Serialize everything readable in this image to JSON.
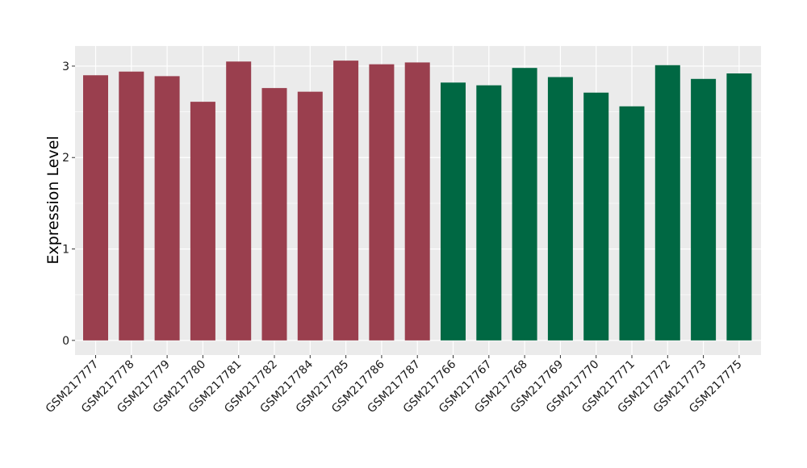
{
  "chart_data": {
    "type": "bar",
    "ylabel": "Expression Level",
    "xlabel": "",
    "ylim": [
      -0.16,
      3.22
    ],
    "yticks": [
      0,
      1,
      2,
      3
    ],
    "grid": true,
    "panel_background": "#EBEBEB",
    "grid_color": "#FFFFFF",
    "categories": [
      "GSM217777",
      "GSM217778",
      "GSM217779",
      "GSM217780",
      "GSM217781",
      "GSM217782",
      "GSM217784",
      "GSM217785",
      "GSM217786",
      "GSM217787",
      "GSM217766",
      "GSM217767",
      "GSM217768",
      "GSM217769",
      "GSM217770",
      "GSM217771",
      "GSM217772",
      "GSM217773",
      "GSM217775"
    ],
    "values": [
      2.9,
      2.94,
      2.89,
      2.61,
      3.05,
      2.76,
      2.72,
      3.06,
      3.02,
      3.04,
      2.82,
      2.79,
      2.98,
      2.88,
      2.71,
      2.56,
      3.01,
      2.86,
      2.92
    ],
    "bar_colors": [
      "#9A3F4E",
      "#9A3F4E",
      "#9A3F4E",
      "#9A3F4E",
      "#9A3F4E",
      "#9A3F4E",
      "#9A3F4E",
      "#9A3F4E",
      "#9A3F4E",
      "#9A3F4E",
      "#006843",
      "#006843",
      "#006843",
      "#006843",
      "#006843",
      "#006843",
      "#006843",
      "#006843",
      "#006843"
    ]
  }
}
